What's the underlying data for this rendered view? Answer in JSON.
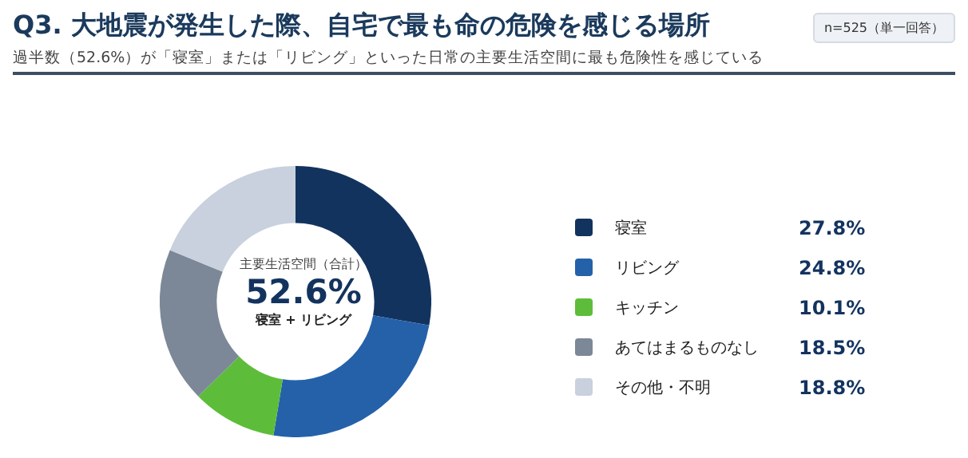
{
  "chart_data": {
    "type": "donut",
    "title": "Q3. 大地震が発生した際、自宅で最も命の危険を感じる場所",
    "subtitle": "過半数（52.6%）が「寝室」または「リビング」といった日常の主要生活空間に最も危険性を感じている",
    "annotations": [
      "n=525（単一回答）",
      "主要生活空間（合計）",
      "52.6%",
      "寝室 + リビング"
    ],
    "categories": [
      "寝室",
      "リビング",
      "キッチン",
      "あてはまるものなし",
      "その他・不明"
    ],
    "values": [
      27.8,
      24.8,
      10.1,
      18.5,
      18.8
    ],
    "colors": [
      "#13335f",
      "#2561a9",
      "#5dbd3a",
      "#7c8897",
      "#c8d1dd"
    ],
    "value_labels": [
      "27.8%",
      "24.8%",
      "10.1%",
      "18.5%",
      "18.8%"
    ],
    "legend": "right"
  }
}
